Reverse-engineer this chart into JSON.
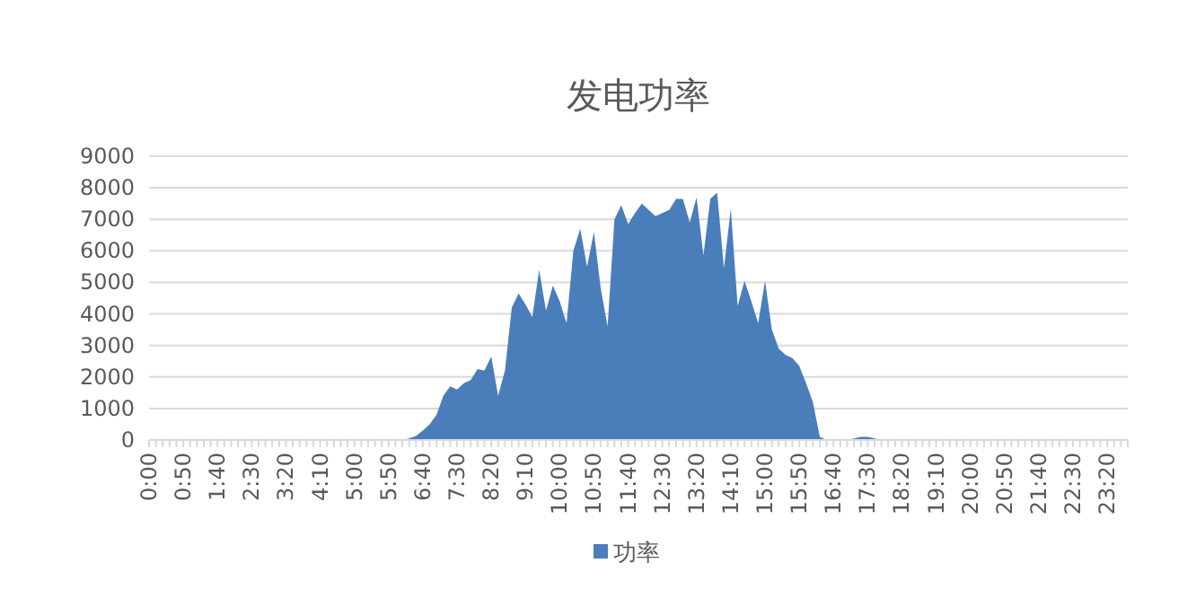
{
  "chart_data": {
    "type": "area",
    "title": "发电功率",
    "categories": [
      "0:00",
      null,
      null,
      null,
      null,
      "0:50",
      null,
      null,
      null,
      null,
      "1:40",
      null,
      null,
      null,
      null,
      "2:30",
      null,
      null,
      null,
      null,
      "3:20",
      null,
      null,
      null,
      null,
      "4:10",
      null,
      null,
      null,
      null,
      "5:00",
      null,
      null,
      null,
      null,
      "5:50",
      null,
      null,
      null,
      null,
      "6:40",
      null,
      null,
      null,
      null,
      "7:30",
      null,
      null,
      null,
      null,
      "8:20",
      null,
      null,
      null,
      null,
      "9:10",
      null,
      null,
      null,
      null,
      "10:00",
      null,
      null,
      null,
      null,
      "10:50",
      null,
      null,
      null,
      null,
      "11:40",
      null,
      null,
      null,
      null,
      "12:30",
      null,
      null,
      null,
      null,
      "13:20",
      null,
      null,
      null,
      null,
      "14:10",
      null,
      null,
      null,
      null,
      "15:00",
      null,
      null,
      null,
      null,
      "15:50",
      null,
      null,
      null,
      null,
      "16:40",
      null,
      null,
      null,
      null,
      "17:30",
      null,
      null,
      null,
      null,
      "18:20",
      null,
      null,
      null,
      null,
      "19:10",
      null,
      null,
      null,
      null,
      "20:00",
      null,
      null,
      null,
      null,
      "20:50",
      null,
      null,
      null,
      null,
      "21:40",
      null,
      null,
      null,
      null,
      "22:30",
      null,
      null,
      null,
      null,
      "23:20",
      null,
      null,
      null
    ],
    "series": [
      {
        "name": "功率",
        "color": "#4a7ebb",
        "values": [
          0,
          0,
          0,
          0,
          0,
          0,
          0,
          0,
          0,
          0,
          0,
          0,
          0,
          0,
          0,
          0,
          0,
          0,
          0,
          0,
          0,
          0,
          0,
          0,
          0,
          0,
          0,
          0,
          0,
          0,
          0,
          0,
          0,
          0,
          0,
          0,
          0,
          0,
          50,
          130,
          300,
          500,
          800,
          1400,
          1700,
          1600,
          1800,
          1900,
          2250,
          2200,
          2650,
          1400,
          2200,
          4200,
          4650,
          4300,
          3900,
          5400,
          4100,
          4900,
          4400,
          3700,
          6000,
          6700,
          5500,
          6600,
          4800,
          3600,
          7000,
          7450,
          6850,
          7200,
          7500,
          7300,
          7100,
          7200,
          7300,
          7650,
          7650,
          6900,
          7700,
          5850,
          7650,
          7850,
          5450,
          7350,
          4250,
          5050,
          4400,
          3700,
          5050,
          3500,
          2900,
          2700,
          2600,
          2350,
          1800,
          1200,
          100,
          0,
          0,
          0,
          0,
          50,
          100,
          100,
          50,
          0,
          0,
          0,
          0,
          0,
          0,
          0,
          0,
          0,
          0,
          0,
          0,
          0,
          0,
          0,
          0,
          0,
          0,
          0,
          0,
          0,
          0,
          0,
          0,
          0,
          0,
          0,
          0,
          0,
          0,
          0,
          0,
          0,
          0,
          0,
          0,
          0
        ]
      }
    ],
    "ylim": [
      0,
      9000
    ],
    "yticks": [
      0,
      1000,
      2000,
      3000,
      4000,
      5000,
      6000,
      7000,
      8000,
      9000
    ],
    "grid": "y",
    "legend": "bottom"
  }
}
